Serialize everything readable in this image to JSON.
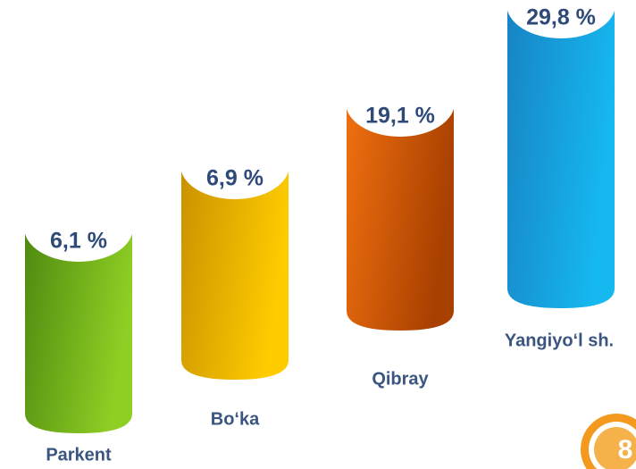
{
  "chart_data": {
    "type": "bar",
    "categories": [
      "Parkent",
      "Bo‘ka",
      "Qibray",
      "Yangiyo‘l sh."
    ],
    "values": [
      6.1,
      6.9,
      19.1,
      29.8
    ],
    "value_labels": [
      "6,1 %",
      "6,9 %",
      "19,1 %",
      "29,8 %"
    ],
    "colors": [
      [
        "#4f8a10",
        "#8fcf24"
      ],
      [
        "#c99200",
        "#ffcc00"
      ],
      [
        "#f07010",
        "#a84000"
      ],
      [
        "#1784c4",
        "#16b8f0"
      ]
    ]
  }
}
